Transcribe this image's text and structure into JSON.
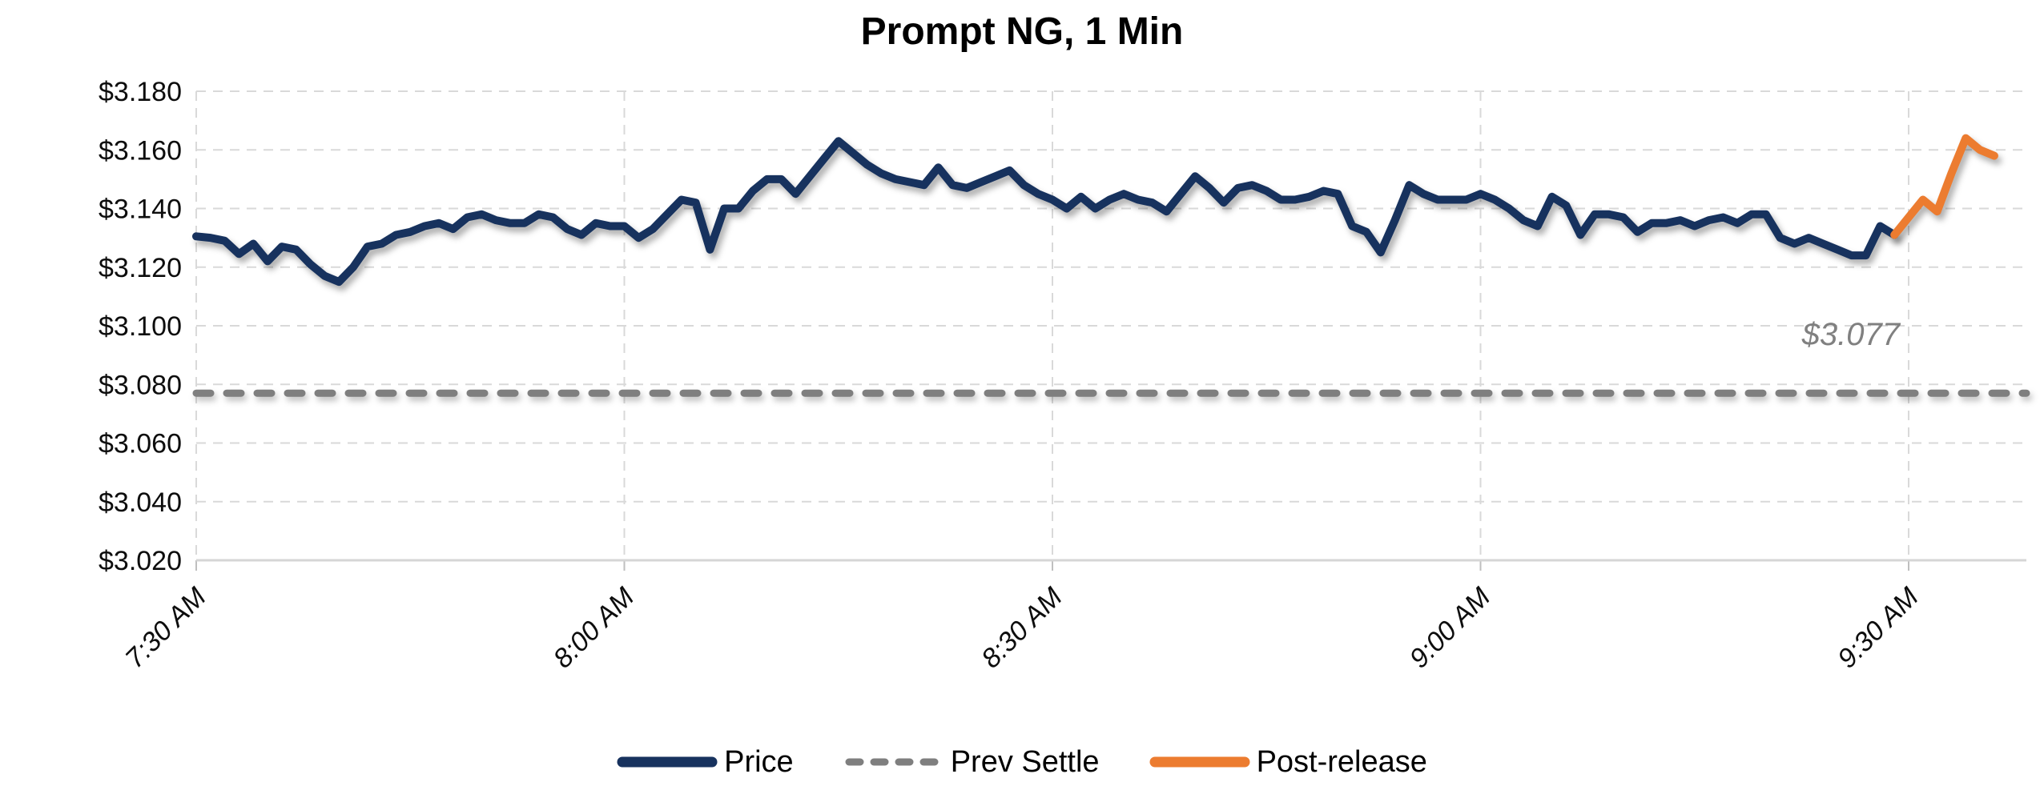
{
  "title": "Prompt NG, 1 Min",
  "annotation": {
    "text": "$3.077",
    "color": "#808080"
  },
  "legend": [
    {
      "label": "Price",
      "color": "#17325e",
      "style": "solid"
    },
    {
      "label": "Prev Settle",
      "color": "#7f7f7f",
      "style": "dashed"
    },
    {
      "label": "Post-release",
      "color": "#ec7c30",
      "style": "solid"
    }
  ],
  "chart_data": {
    "type": "line",
    "title": "Prompt NG, 1 Min",
    "xlabel": "",
    "ylabel": "",
    "grid": true,
    "legend_position": "bottom",
    "x_ticks": [
      "7:30 AM",
      "8:00 AM",
      "8:30 AM",
      "9:00 AM",
      "9:30 AM"
    ],
    "x_tick_interval_minutes": 30,
    "y_ticks": [
      "$3.180",
      "$3.160",
      "$3.140",
      "$3.120",
      "$3.100",
      "$3.080",
      "$3.060",
      "$3.040",
      "$3.020"
    ],
    "ylim": [
      3.02,
      3.18
    ],
    "x_range_minutes": [
      0,
      128
    ],
    "prev_settle": 3.077,
    "series": [
      {
        "name": "Price",
        "color": "#17325e",
        "style": "solid",
        "start_minute": 0,
        "interval_minutes": 1,
        "values": [
          3.1305,
          3.13,
          3.129,
          3.1245,
          3.128,
          3.122,
          3.127,
          3.126,
          3.121,
          3.117,
          3.115,
          3.12,
          3.127,
          3.128,
          3.131,
          3.132,
          3.134,
          3.135,
          3.133,
          3.137,
          3.138,
          3.136,
          3.135,
          3.135,
          3.138,
          3.137,
          3.133,
          3.131,
          3.135,
          3.134,
          3.134,
          3.13,
          3.133,
          3.138,
          3.143,
          3.142,
          3.126,
          3.14,
          3.14,
          3.146,
          3.15,
          3.15,
          3.145,
          3.151,
          3.157,
          3.163,
          3.159,
          3.155,
          3.152,
          3.15,
          3.149,
          3.148,
          3.154,
          3.148,
          3.147,
          3.149,
          3.151,
          3.153,
          3.148,
          3.145,
          3.143,
          3.14,
          3.144,
          3.14,
          3.143,
          3.145,
          3.143,
          3.142,
          3.139,
          3.145,
          3.151,
          3.147,
          3.142,
          3.147,
          3.148,
          3.146,
          3.143,
          3.143,
          3.144,
          3.146,
          3.145,
          3.134,
          3.132,
          3.125,
          3.136,
          3.148,
          3.145,
          3.143,
          3.143,
          3.143,
          3.145,
          3.143,
          3.14,
          3.136,
          3.134,
          3.144,
          3.141,
          3.131,
          3.138,
          3.138,
          3.137,
          3.132,
          3.135,
          3.135,
          3.136,
          3.134,
          3.136,
          3.137,
          3.135,
          3.138,
          3.138,
          3.13,
          3.128,
          3.13,
          3.128,
          3.126,
          3.124,
          3.124,
          3.134,
          3.131
        ]
      },
      {
        "name": "Prev Settle",
        "color": "#7f7f7f",
        "style": "dashed",
        "constant": 3.077
      },
      {
        "name": "Post-release",
        "color": "#ec7c30",
        "style": "solid",
        "start_minute": 119,
        "interval_minutes": 1,
        "values": [
          3.131,
          3.137,
          3.143,
          3.139,
          3.152,
          3.164,
          3.16,
          3.158
        ]
      }
    ]
  }
}
